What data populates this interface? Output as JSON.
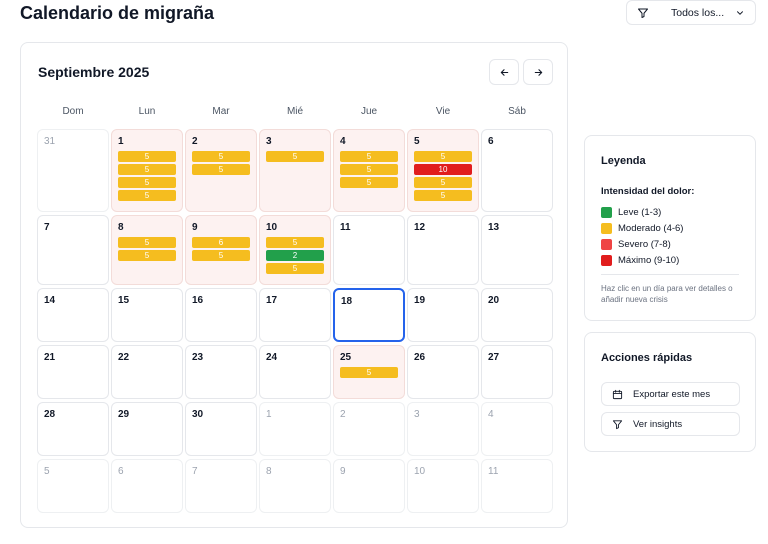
{
  "header": {
    "title": "Calendario de migraña",
    "filter": {
      "label": "Todos los...",
      "icon": "filter-icon"
    }
  },
  "calendar": {
    "month_label": "Septiembre 2025",
    "prev_icon": "arrow-left-icon",
    "next_icon": "arrow-right-icon",
    "weekdays": [
      "Dom",
      "Lun",
      "Mar",
      "Mié",
      "Jue",
      "Vie",
      "Sáb"
    ],
    "days": [
      {
        "day": "31",
        "other": true,
        "events": []
      },
      {
        "day": "1",
        "events": [
          "5",
          "5",
          "5",
          "5"
        ]
      },
      {
        "day": "2",
        "events": [
          "5",
          "5"
        ]
      },
      {
        "day": "3",
        "events": [
          "5"
        ]
      },
      {
        "day": "4",
        "events": [
          "5",
          "5",
          "5"
        ]
      },
      {
        "day": "5",
        "events": [
          "5",
          "10",
          "5",
          "5"
        ]
      },
      {
        "day": "6",
        "events": []
      },
      {
        "day": "7",
        "events": []
      },
      {
        "day": "8",
        "events": [
          "5",
          "5"
        ]
      },
      {
        "day": "9",
        "events": [
          "6",
          "5"
        ]
      },
      {
        "day": "10",
        "events": [
          "5",
          "2",
          "5"
        ]
      },
      {
        "day": "11",
        "events": []
      },
      {
        "day": "12",
        "events": []
      },
      {
        "day": "13",
        "events": []
      },
      {
        "day": "14",
        "events": []
      },
      {
        "day": "15",
        "events": []
      },
      {
        "day": "16",
        "events": []
      },
      {
        "day": "17",
        "events": []
      },
      {
        "day": "18",
        "today": true,
        "events": []
      },
      {
        "day": "19",
        "events": []
      },
      {
        "day": "20",
        "events": []
      },
      {
        "day": "21",
        "events": []
      },
      {
        "day": "22",
        "events": []
      },
      {
        "day": "23",
        "events": []
      },
      {
        "day": "24",
        "events": []
      },
      {
        "day": "25",
        "events": [
          "5"
        ]
      },
      {
        "day": "26",
        "events": []
      },
      {
        "day": "27",
        "events": []
      },
      {
        "day": "28",
        "events": []
      },
      {
        "day": "29",
        "events": []
      },
      {
        "day": "30",
        "events": []
      },
      {
        "day": "1",
        "other": true,
        "events": []
      },
      {
        "day": "2",
        "other": true,
        "events": []
      },
      {
        "day": "3",
        "other": true,
        "events": []
      },
      {
        "day": "4",
        "other": true,
        "events": []
      },
      {
        "day": "5",
        "other": true,
        "events": []
      },
      {
        "day": "6",
        "other": true,
        "events": []
      },
      {
        "day": "7",
        "other": true,
        "events": []
      },
      {
        "day": "8",
        "other": true,
        "events": []
      },
      {
        "day": "9",
        "other": true,
        "events": []
      },
      {
        "day": "10",
        "other": true,
        "events": []
      },
      {
        "day": "11",
        "other": true,
        "events": []
      }
    ]
  },
  "severity_colors": {
    "leve": "#22a04b",
    "moderado": "#f5bd1f",
    "severo": "#ef4444",
    "maximo": "#e11d1d"
  },
  "legend": {
    "title": "Leyenda",
    "subtitle": "Intensidad del dolor:",
    "items": [
      {
        "label": "Leve (1-3)",
        "color": "#22a04b"
      },
      {
        "label": "Moderado (4-6)",
        "color": "#f5bd1f"
      },
      {
        "label": "Severo (7-8)",
        "color": "#ef4444"
      },
      {
        "label": "Máximo (9-10)",
        "color": "#e11d1d"
      }
    ],
    "hint": "Haz clic en un día para ver detalles o añadir nueva crisis"
  },
  "actions": {
    "title": "Acciones rápidas",
    "export_label": "Exportar este mes",
    "export_icon": "calendar-icon",
    "insights_label": "Ver insights",
    "insights_icon": "filter-icon"
  }
}
